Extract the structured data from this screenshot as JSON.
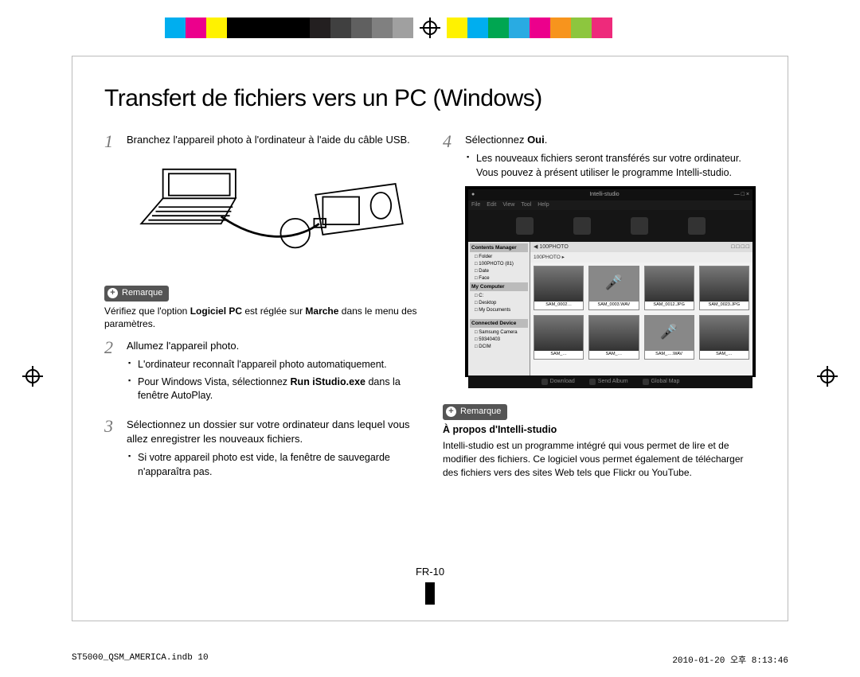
{
  "registration": {
    "left_colors": [
      "#00aeef",
      "#ec008c",
      "#fff200",
      "#000000",
      "#000000",
      "#000000",
      "#000000",
      "#231f20",
      "#404040",
      "#606060",
      "#808080",
      "#a0a0a0"
    ],
    "right_colors": [
      "#fff200",
      "#00aeef",
      "#00a651",
      "#29abe2",
      "#ec008c",
      "#f7941d",
      "#8dc63e",
      "#ee2a7b",
      "#ffffff",
      "#ffffff",
      "#ffffff",
      "#ffffff"
    ]
  },
  "title": "Transfert de fichiers vers un PC (Windows)",
  "steps": {
    "s1": {
      "num": "1",
      "text": "Branchez l'appareil photo à l'ordinateur à l'aide du câble USB."
    },
    "s2": {
      "num": "2",
      "text": "Allumez l'appareil photo.",
      "bullets": [
        "L'ordinateur reconnaît l'appareil photo automatiquement.",
        "Pour Windows Vista, sélectionnez Run iStudio.exe dans la fenêtre AutoPlay."
      ]
    },
    "s3": {
      "num": "3",
      "text": "Sélectionnez un dossier sur votre ordinateur dans lequel vous allez enregistrer les nouveaux fichiers.",
      "bullets": [
        "Si votre appareil photo est vide, la fenêtre de sauvegarde n'apparaîtra pas."
      ]
    },
    "s4": {
      "num": "4",
      "text_pre": "Sélectionnez ",
      "text_bold": "Oui",
      "text_post": ".",
      "bullets": [
        "Les nouveaux fichiers seront transférés sur votre ordinateur. Vous pouvez à présent utiliser le programme Intelli-studio."
      ]
    }
  },
  "remarks": {
    "label": "Remarque",
    "r1_pre": "Vérifiez que l'option ",
    "r1_b1": "Logiciel PC",
    "r1_mid": " est réglée sur ",
    "r1_b2": "Marche",
    "r1_post": " dans le menu des paramètres.",
    "r2_title": "À propos d'Intelli-studio",
    "r2_body": "Intelli-studio est un programme intégré qui vous permet de lire et de modifier des fichiers. Ce logiciel vous permet également de télécharger des fichiers vers des sites Web tels que Flickr ou YouTube."
  },
  "screenshot": {
    "app_title": "Intelli-studio",
    "menu": [
      "File",
      "Edit",
      "View",
      "Tool",
      "Help"
    ],
    "sidebar_hdr1": "Contents Manager",
    "tree1": [
      "□ Folder",
      "  □ 100PHOTO   (81)",
      "□ Date",
      "□ Face"
    ],
    "sidebar_hdr2": "My Computer",
    "tree2": [
      "□ C:",
      "□ Desktop",
      "□ My Documents"
    ],
    "sidebar_hdr3": "Connected Device",
    "tree3": [
      "□ Samsung Camera",
      "  □ 59340403",
      "    □ DCIM"
    ],
    "path_left": "◀ 100PHOTO",
    "path_right": "□ □ □ □",
    "breadcrumb": "100PHOTO ▸",
    "thumbs": [
      {
        "type": "photo",
        "cap": "SAM_0002…"
      },
      {
        "type": "audio",
        "cap": "SAM_0003.WAV"
      },
      {
        "type": "photo",
        "cap": "SAM_0012.JPG"
      },
      {
        "type": "photo",
        "cap": "SAM_0023.JPG"
      },
      {
        "type": "photo",
        "cap": "SAM_…"
      },
      {
        "type": "photo",
        "cap": "SAM_…"
      },
      {
        "type": "audio",
        "cap": "SAM_….WAV"
      },
      {
        "type": "photo",
        "cap": "SAM_…"
      }
    ],
    "footer_btns": [
      "Download",
      "Send Album",
      "Global Map"
    ]
  },
  "page_number": "FR-10",
  "footer_left": "ST5000_QSM_AMERICA.indb   10",
  "footer_right": "2010-01-20   오후 8:13:46"
}
